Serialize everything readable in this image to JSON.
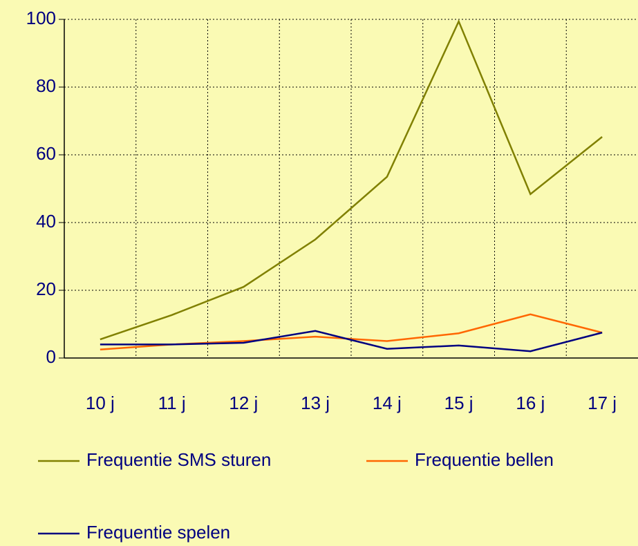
{
  "chart_data": {
    "type": "line",
    "categories": [
      "10 j",
      "11 j",
      "12 j",
      "13 j",
      "14 j",
      "15 j",
      "16 j",
      "17 j"
    ],
    "series": [
      {
        "name": "Frequentie SMS sturen",
        "color": "#808000",
        "values": [
          5.5,
          12.7,
          21,
          35,
          53.5,
          99.4,
          48.4,
          65.3
        ]
      },
      {
        "name": "Frequentie bellen",
        "color": "#ff6600",
        "values": [
          2.5,
          4,
          5,
          6.3,
          5,
          7.3,
          12.9,
          7.5
        ]
      },
      {
        "name": "Frequentie spelen",
        "color": "#000080",
        "values": [
          4,
          4,
          4.5,
          8,
          2.7,
          3.7,
          2,
          7.5
        ]
      }
    ],
    "ylim": [
      0,
      100
    ],
    "yticks": [
      0,
      20,
      40,
      60,
      80,
      100
    ],
    "grid": true
  }
}
